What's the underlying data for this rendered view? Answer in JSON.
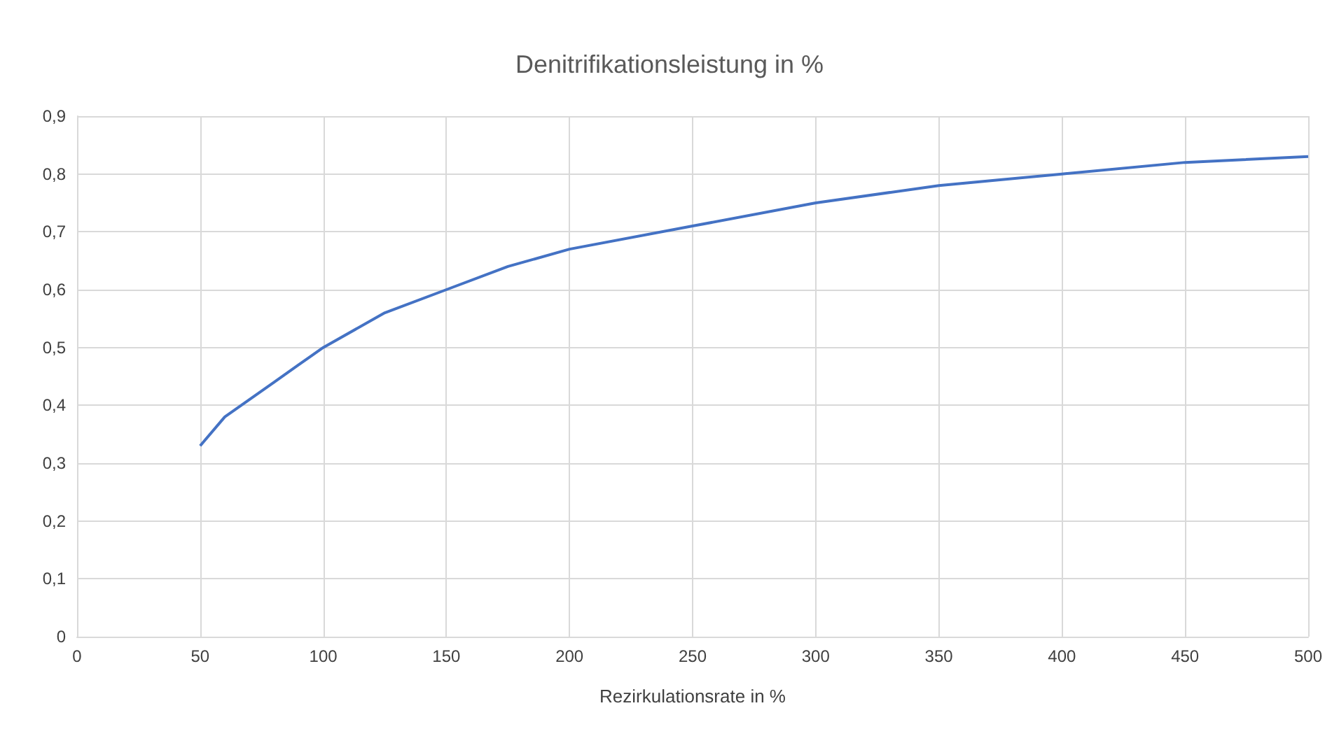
{
  "chart_data": {
    "type": "line",
    "title": "Denitrifikationsleistung in %",
    "xlabel": "Rezirkulationsrate in %",
    "x": [
      50,
      60,
      70,
      80,
      90,
      100,
      125,
      150,
      175,
      200,
      250,
      300,
      350,
      400,
      450,
      500
    ],
    "series": [
      {
        "color": "#4472c4",
        "values": [
          0.33,
          0.38,
          0.41,
          0.44,
          0.47,
          0.5,
          0.56,
          0.6,
          0.64,
          0.67,
          0.71,
          0.75,
          0.78,
          0.8,
          0.82,
          0.83
        ]
      }
    ],
    "xlim": [
      0,
      500
    ],
    "xticks": [
      0,
      50,
      100,
      150,
      200,
      250,
      300,
      350,
      400,
      450,
      500
    ],
    "ylim": [
      0,
      0.9
    ],
    "yticks": [
      0,
      {
        "value": 0.1,
        "label": "0,1"
      },
      {
        "value": 0.2,
        "label": "0,2"
      },
      {
        "value": 0.3,
        "label": "0,3"
      },
      {
        "value": 0.4,
        "label": "0,4"
      },
      {
        "value": 0.5,
        "label": "0,5"
      },
      {
        "value": 0.6,
        "label": "0,6"
      },
      {
        "value": 0.7,
        "label": "0,7"
      },
      {
        "value": 0.8,
        "label": "0,8"
      },
      {
        "value": 0.9,
        "label": "0,9"
      }
    ],
    "grid": true,
    "marker": "none",
    "line_style": "solid"
  }
}
